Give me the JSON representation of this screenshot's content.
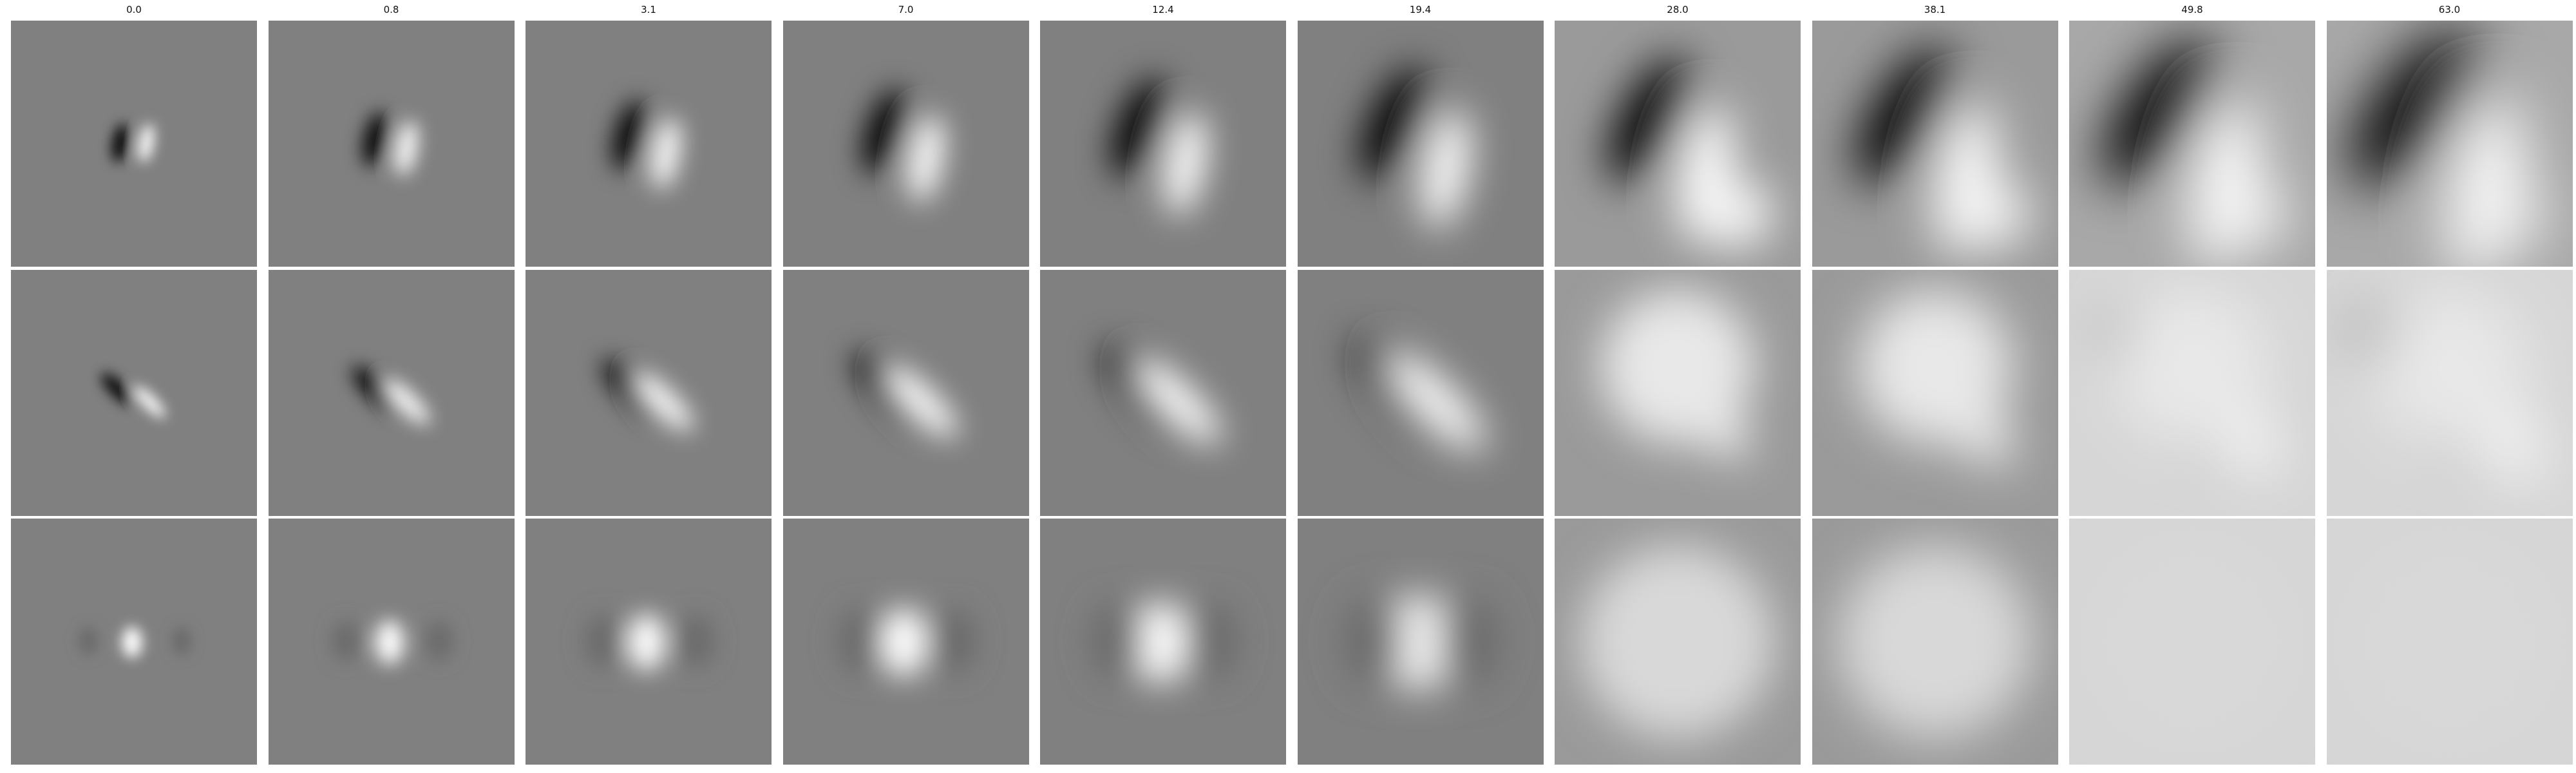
{
  "figure": {
    "column_titles": [
      "0.0",
      "0.8",
      "3.1",
      "7.0",
      "12.4",
      "19.4",
      "28.0",
      "38.1",
      "49.8",
      "63.0"
    ],
    "rows": 3,
    "colormap": "grayscale",
    "colors": {
      "background": "#ffffff",
      "neutral_gray": "#808080",
      "dark": "#000000",
      "light": "#ffffff"
    }
  }
}
